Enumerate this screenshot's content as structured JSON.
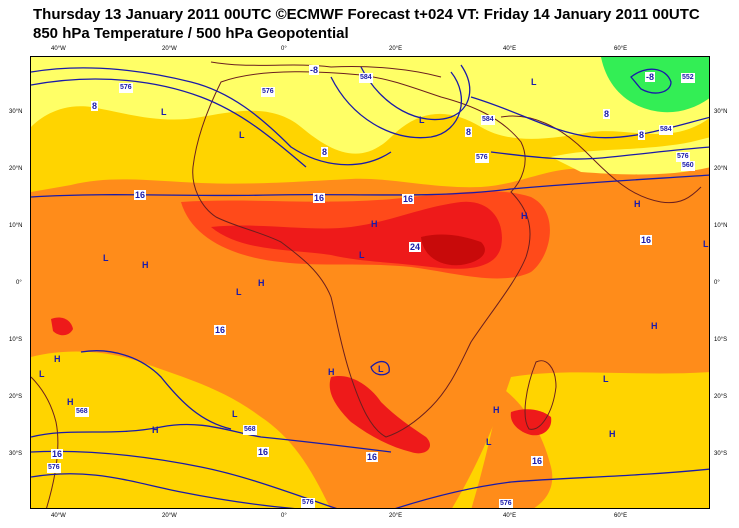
{
  "title_line1": "Thursday 13 January 2011 00UTC ©ECMWF Forecast t+024 VT: Friday 14 January 2011 00UTC",
  "title_line2": "850 hPa Temperature / 500 hPa Geopotential",
  "lon_labels_top": [
    "40°W",
    "20°W",
    "0°",
    "20°E",
    "40°E",
    "60°E"
  ],
  "lon_labels_bottom": [
    "40°W",
    "20°W",
    "0°",
    "20°E",
    "40°E",
    "60°E"
  ],
  "lat_labels_left": [
    "30°N",
    "20°N",
    "10°N",
    "0°",
    "10°S",
    "20°S",
    "30°S"
  ],
  "lat_labels_right": [
    "30°N",
    "20°N",
    "10°N",
    "0°",
    "10°S",
    "20°S",
    "30°S"
  ],
  "pressure_centres": [
    "L",
    "L",
    "L",
    "H",
    "H",
    "L",
    "H",
    "L",
    "H",
    "L",
    "H",
    "H",
    "L",
    "H",
    "L",
    "H",
    "H",
    "L",
    "H",
    "L",
    "L",
    "H",
    "L",
    "H",
    "L",
    "L"
  ],
  "temperature_labels": [
    "8",
    "8",
    "8",
    "8",
    "8",
    "16",
    "16",
    "16",
    "16",
    "16",
    "16",
    "16",
    "24",
    "-8",
    "-8",
    "16",
    "16"
  ],
  "geopotential_labels": [
    "576",
    "576",
    "584",
    "584",
    "576",
    "568",
    "584",
    "576",
    "568",
    "576",
    "576",
    "576",
    "552",
    "560"
  ],
  "colors": {
    "coast": "#6b1f1f",
    "contour": "#1a1aa8",
    "band_cold": "#33ee55",
    "band_cool": "#ffff66",
    "band_mild": "#ffd400",
    "band_warm": "#ff8c1a",
    "band_hot": "#ff4a1a",
    "band_very_hot": "#ee1a1a",
    "band_extreme": "#c80a0a"
  }
}
